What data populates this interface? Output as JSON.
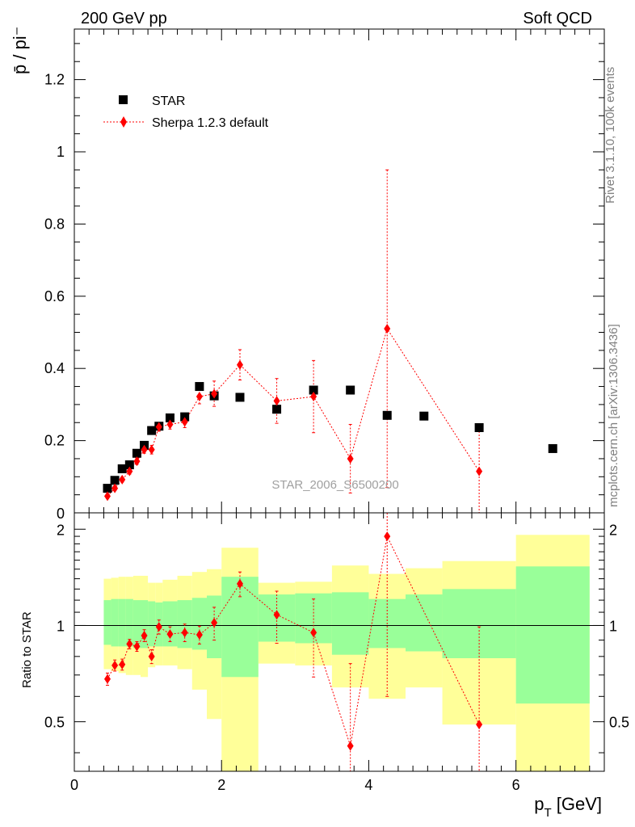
{
  "header": {
    "left": "200 GeV pp",
    "right": "Soft QCD"
  },
  "side_text": {
    "rivet": "Rivet 3.1.10,  100k events",
    "mcplots": "mcplots.cern.ch [arXiv:1306.3436]"
  },
  "watermark": "STAR_2006_S6500200",
  "colors": {
    "data": "#000000",
    "mc": "#ff0000",
    "band_inner": "#99ff99",
    "band_outer": "#ffff99"
  },
  "chart_data": [
    {
      "type": "scatter",
      "name": "main",
      "ylabel": "p̄ / pi⁻",
      "xlim": [
        0,
        7.2
      ],
      "ylim": [
        0,
        1.34
      ],
      "yticks": [
        0.2,
        0.4,
        0.6,
        0.8,
        1.0,
        1.2
      ],
      "ytick_labels": [
        "0.2",
        "0.4",
        "0.6",
        "0.8",
        "1",
        "1.2"
      ],
      "y_bottom_label": "0",
      "legend": {
        "position": "top-left",
        "entries": [
          "STAR",
          "Sherpa 1.2.3 default"
        ]
      },
      "series": [
        {
          "name": "STAR",
          "marker": "square",
          "x": [
            0.45,
            0.55,
            0.65,
            0.75,
            0.85,
            0.95,
            1.05,
            1.15,
            1.3,
            1.5,
            1.7,
            1.9,
            2.25,
            2.75,
            3.25,
            3.75,
            4.25,
            4.75,
            5.5,
            6.5
          ],
          "y": [
            0.068,
            0.09,
            0.122,
            0.133,
            0.165,
            0.187,
            0.228,
            0.24,
            0.263,
            0.266,
            0.35,
            0.324,
            0.32,
            0.287,
            0.34,
            0.34,
            0.27,
            0.268,
            0.236,
            0.178
          ]
        },
        {
          "name": "Sherpa 1.2.3 default",
          "marker": "diamond",
          "x": [
            0.45,
            0.55,
            0.65,
            0.75,
            0.85,
            0.95,
            1.05,
            1.15,
            1.3,
            1.5,
            1.7,
            1.9,
            2.25,
            2.75,
            3.25,
            3.75,
            4.25,
            5.5
          ],
          "y": [
            0.046,
            0.068,
            0.092,
            0.115,
            0.143,
            0.175,
            0.175,
            0.238,
            0.245,
            0.252,
            0.322,
            0.33,
            0.41,
            0.31,
            0.322,
            0.15,
            0.51,
            0.115
          ],
          "err": [
            0.006,
            0.006,
            0.007,
            0.008,
            0.009,
            0.01,
            0.012,
            0.012,
            0.013,
            0.016,
            0.02,
            0.035,
            0.042,
            0.062,
            0.1,
            0.095,
            0.44,
            0.12
          ]
        }
      ]
    },
    {
      "type": "scatter",
      "name": "ratio",
      "xlabel": "p_T [GeV]",
      "ylabel": "Ratio to STAR",
      "xlim": [
        0,
        7.2
      ],
      "ylim": [
        0.35,
        2.25
      ],
      "log_y": true,
      "xticks": [
        0,
        2,
        4,
        6
      ],
      "xtick_labels": [
        "0",
        "2",
        "4",
        "6"
      ],
      "yticks": [
        0.5,
        1,
        2
      ],
      "ytick_labels": [
        "0.5",
        "1",
        "2"
      ],
      "bands": [
        {
          "x0": 0.4,
          "x1": 0.5,
          "inner": [
            0.87,
            1.2
          ],
          "outer": [
            0.73,
            1.4
          ]
        },
        {
          "x0": 0.5,
          "x1": 0.6,
          "inner": [
            0.86,
            1.21
          ],
          "outer": [
            0.72,
            1.41
          ]
        },
        {
          "x0": 0.6,
          "x1": 0.7,
          "inner": [
            0.86,
            1.21
          ],
          "outer": [
            0.71,
            1.42
          ]
        },
        {
          "x0": 0.7,
          "x1": 0.8,
          "inner": [
            0.86,
            1.21
          ],
          "outer": [
            0.7,
            1.42
          ]
        },
        {
          "x0": 0.8,
          "x1": 0.9,
          "inner": [
            0.85,
            1.2
          ],
          "outer": [
            0.7,
            1.43
          ]
        },
        {
          "x0": 0.9,
          "x1": 1.0,
          "inner": [
            0.85,
            1.2
          ],
          "outer": [
            0.69,
            1.43
          ]
        },
        {
          "x0": 1.0,
          "x1": 1.1,
          "inner": [
            0.86,
            1.19
          ],
          "outer": [
            0.74,
            1.36
          ]
        },
        {
          "x0": 1.1,
          "x1": 1.2,
          "inner": [
            0.86,
            1.18
          ],
          "outer": [
            0.75,
            1.36
          ]
        },
        {
          "x0": 1.2,
          "x1": 1.4,
          "inner": [
            0.86,
            1.19
          ],
          "outer": [
            0.75,
            1.39
          ]
        },
        {
          "x0": 1.4,
          "x1": 1.6,
          "inner": [
            0.85,
            1.2
          ],
          "outer": [
            0.73,
            1.43
          ]
        },
        {
          "x0": 1.6,
          "x1": 1.8,
          "inner": [
            0.84,
            1.22
          ],
          "outer": [
            0.63,
            1.47
          ]
        },
        {
          "x0": 1.8,
          "x1": 2.0,
          "inner": [
            0.79,
            1.24
          ],
          "outer": [
            0.51,
            1.5
          ]
        },
        {
          "x0": 2.0,
          "x1": 2.5,
          "inner": [
            0.69,
            1.42
          ],
          "outer": [
            0.3,
            1.75
          ]
        },
        {
          "x0": 2.5,
          "x1": 3.0,
          "inner": [
            0.89,
            1.25
          ],
          "outer": [
            0.76,
            1.36
          ]
        },
        {
          "x0": 3.0,
          "x1": 3.5,
          "inner": [
            0.88,
            1.26
          ],
          "outer": [
            0.75,
            1.37
          ]
        },
        {
          "x0": 3.5,
          "x1": 4.0,
          "inner": [
            0.81,
            1.27
          ],
          "outer": [
            0.64,
            1.54
          ]
        },
        {
          "x0": 4.0,
          "x1": 4.5,
          "inner": [
            0.85,
            1.21
          ],
          "outer": [
            0.59,
            1.45
          ]
        },
        {
          "x0": 4.5,
          "x1": 5.0,
          "inner": [
            0.83,
            1.25
          ],
          "outer": [
            0.64,
            1.51
          ]
        },
        {
          "x0": 5.0,
          "x1": 6.0,
          "inner": [
            0.79,
            1.3
          ],
          "outer": [
            0.49,
            1.59
          ]
        },
        {
          "x0": 6.0,
          "x1": 7.0,
          "inner": [
            0.57,
            1.53
          ],
          "outer": [
            0.3,
            1.92
          ]
        }
      ],
      "reference_line": 1,
      "series": [
        {
          "name": "Sherpa 1.2.3 default",
          "marker": "diamond",
          "x": [
            0.45,
            0.55,
            0.65,
            0.75,
            0.85,
            0.95,
            1.05,
            1.15,
            1.3,
            1.5,
            1.7,
            1.9,
            2.25,
            2.75,
            3.25,
            3.75,
            4.25,
            5.5
          ],
          "y": [
            0.68,
            0.75,
            0.755,
            0.875,
            0.86,
            0.93,
            0.8,
            0.99,
            0.94,
            0.95,
            0.935,
            1.02,
            1.35,
            1.08,
            0.95,
            0.42,
            1.9,
            0.49
          ],
          "err": [
            0.03,
            0.03,
            0.03,
            0.03,
            0.03,
            0.04,
            0.04,
            0.05,
            0.05,
            0.06,
            0.06,
            0.12,
            0.12,
            0.2,
            0.26,
            0.34,
            1.3,
            0.5
          ]
        }
      ]
    }
  ]
}
